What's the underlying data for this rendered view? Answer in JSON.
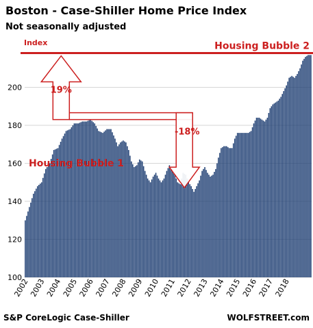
{
  "chart_data": {
    "type": "bar",
    "title": "Boston - Case-Shiller Home Price Index",
    "subtitle": "Not seasonally adjusted",
    "ylabel": "Index",
    "ylim": [
      100,
      220
    ],
    "y_ticks": [
      100,
      120,
      140,
      160,
      180,
      200
    ],
    "grid": true,
    "year_labels": [
      "2002",
      "2003",
      "2004",
      "2005",
      "2006",
      "2007",
      "2008",
      "2009",
      "2010",
      "2011",
      "2012",
      "2013",
      "2014",
      "2015",
      "2016",
      "2017",
      "2018"
    ],
    "bar_color": "#1f3f73",
    "annotation_color": "#cc1f1f",
    "annotations": {
      "bubble1": "Housing Bubble 1",
      "bubble2": "Housing Bubble 2",
      "up_pct": "19%",
      "down_pct": "-18%"
    },
    "reference_value": 218,
    "bubble1_peak": {
      "index": 49,
      "value": 183
    },
    "bubble1_trough": {
      "index": 124,
      "value": 145
    },
    "anchors": [
      [
        0,
        130
      ],
      [
        3,
        137
      ],
      [
        6,
        144
      ],
      [
        9,
        148
      ],
      [
        12,
        150
      ],
      [
        15,
        157
      ],
      [
        18,
        160
      ],
      [
        21,
        167
      ],
      [
        24,
        168
      ],
      [
        27,
        173
      ],
      [
        30,
        177
      ],
      [
        33,
        178
      ],
      [
        36,
        181
      ],
      [
        39,
        181
      ],
      [
        42,
        182
      ],
      [
        45,
        182
      ],
      [
        48,
        183
      ],
      [
        51,
        181
      ],
      [
        54,
        177
      ],
      [
        57,
        176
      ],
      [
        60,
        178
      ],
      [
        63,
        178
      ],
      [
        66,
        173
      ],
      [
        68,
        169
      ],
      [
        70,
        171
      ],
      [
        72,
        172
      ],
      [
        74,
        171
      ],
      [
        76,
        167
      ],
      [
        78,
        161
      ],
      [
        80,
        158
      ],
      [
        82,
        159
      ],
      [
        84,
        162
      ],
      [
        86,
        161
      ],
      [
        88,
        156
      ],
      [
        90,
        152
      ],
      [
        92,
        150
      ],
      [
        94,
        153
      ],
      [
        96,
        155
      ],
      [
        98,
        152
      ],
      [
        100,
        150
      ],
      [
        102,
        152
      ],
      [
        104,
        156
      ],
      [
        106,
        159
      ],
      [
        108,
        157
      ],
      [
        110,
        154
      ],
      [
        112,
        150
      ],
      [
        114,
        149
      ],
      [
        116,
        155
      ],
      [
        118,
        154
      ],
      [
        120,
        150
      ],
      [
        122,
        148
      ],
      [
        124,
        145
      ],
      [
        126,
        148
      ],
      [
        128,
        151
      ],
      [
        130,
        156
      ],
      [
        132,
        158
      ],
      [
        134,
        155
      ],
      [
        136,
        153
      ],
      [
        138,
        154
      ],
      [
        140,
        157
      ],
      [
        142,
        163
      ],
      [
        144,
        168
      ],
      [
        146,
        169
      ],
      [
        148,
        169
      ],
      [
        150,
        168
      ],
      [
        152,
        168
      ],
      [
        154,
        173
      ],
      [
        156,
        176
      ],
      [
        158,
        176
      ],
      [
        160,
        176
      ],
      [
        162,
        176
      ],
      [
        164,
        176
      ],
      [
        166,
        177
      ],
      [
        168,
        181
      ],
      [
        170,
        184
      ],
      [
        172,
        184
      ],
      [
        174,
        183
      ],
      [
        176,
        182
      ],
      [
        178,
        184
      ],
      [
        180,
        189
      ],
      [
        182,
        191
      ],
      [
        184,
        192
      ],
      [
        186,
        193
      ],
      [
        188,
        195
      ],
      [
        190,
        198
      ],
      [
        192,
        201
      ],
      [
        194,
        205
      ],
      [
        196,
        206
      ],
      [
        198,
        205
      ],
      [
        200,
        207
      ],
      [
        202,
        210
      ],
      [
        204,
        214
      ],
      [
        206,
        216
      ],
      [
        208,
        217
      ],
      [
        210,
        217
      ]
    ],
    "source": "S&P CoreLogic Case-Shiller",
    "credit": "WOLFSTREET.com"
  }
}
